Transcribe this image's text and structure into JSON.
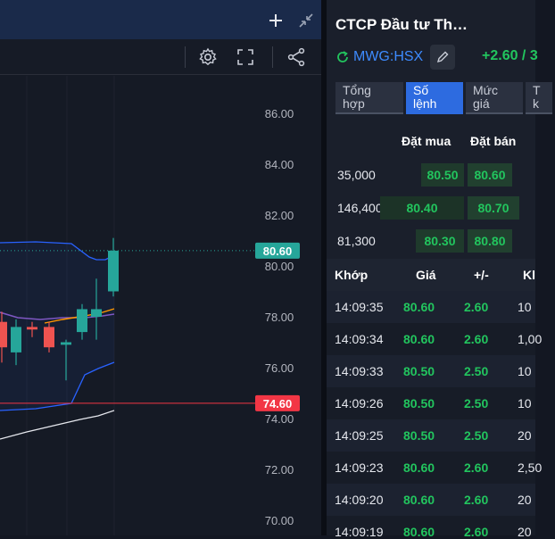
{
  "chart": {
    "y_ticks": [
      "86.00",
      "84.00",
      "82.00",
      "80.00",
      "78.00",
      "76.00",
      "74.00",
      "72.00",
      "70.00"
    ],
    "last_price_label": "80.60",
    "reference_label": "74.60",
    "colors": {
      "up": "#26a69a",
      "down": "#ef5350",
      "band": "#2962ff",
      "last": "#26a69a",
      "ref": "#f23645"
    }
  },
  "chart_data": {
    "type": "candlestick",
    "ylim": [
      69.5,
      87.2
    ],
    "y_ticks": [
      86,
      84,
      82,
      80,
      78,
      76,
      74,
      72,
      70
    ],
    "last_price": 80.6,
    "reference_price": 74.6,
    "candles": [
      {
        "open": 77.8,
        "close": 76.8,
        "high": 78.2,
        "low": 76.2
      },
      {
        "open": 76.6,
        "close": 77.6,
        "high": 77.9,
        "low": 76.1
      },
      {
        "open": 77.6,
        "close": 77.5,
        "high": 77.8,
        "low": 77.2
      },
      {
        "open": 77.6,
        "close": 76.8,
        "high": 77.8,
        "low": 76.6
      },
      {
        "open": 76.9,
        "close": 77.0,
        "high": 77.1,
        "low": 75.5
      },
      {
        "open": 77.4,
        "close": 78.3,
        "high": 78.5,
        "low": 77.1
      },
      {
        "open": 78.0,
        "close": 78.3,
        "high": 79.5,
        "low": 77.1
      },
      {
        "open": 79.0,
        "close": 80.6,
        "high": 81.1,
        "low": 78.8
      }
    ]
  },
  "info": {
    "company": "CTCP Đầu tư Th…",
    "ticker": "MWG:HSX",
    "change": "+2.60 / 3"
  },
  "tabs": [
    {
      "l1": "Tổng",
      "l2": "hợp"
    },
    {
      "l1": "Số",
      "l2": "lệnh"
    },
    {
      "l1": "Mức",
      "l2": "giá"
    },
    {
      "l1": "T",
      "l2": "k"
    }
  ],
  "orderbook": {
    "buy_header": "Đặt mua",
    "sell_header": "Đặt bán",
    "rows": [
      {
        "vol": "35,000",
        "buy": "80.50",
        "sell": "80.60"
      },
      {
        "vol": "146,400",
        "buy": "80.40",
        "sell": "80.70"
      },
      {
        "vol": "81,300",
        "buy": "80.30",
        "sell": "80.80"
      }
    ]
  },
  "matches": {
    "headers": {
      "time": "Khớp",
      "price": "Giá",
      "change": "+/-",
      "vol": "Kl"
    },
    "rows": [
      {
        "time": "14:09:35",
        "price": "80.60",
        "change": "2.60",
        "vol": "10"
      },
      {
        "time": "14:09:34",
        "price": "80.60",
        "change": "2.60",
        "vol": "1,00"
      },
      {
        "time": "14:09:33",
        "price": "80.50",
        "change": "2.50",
        "vol": "10"
      },
      {
        "time": "14:09:26",
        "price": "80.50",
        "change": "2.50",
        "vol": "10"
      },
      {
        "time": "14:09:25",
        "price": "80.50",
        "change": "2.50",
        "vol": "20"
      },
      {
        "time": "14:09:23",
        "price": "80.60",
        "change": "2.60",
        "vol": "2,50"
      },
      {
        "time": "14:09:20",
        "price": "80.60",
        "change": "2.60",
        "vol": "20"
      },
      {
        "time": "14:09:19",
        "price": "80.60",
        "change": "2.60",
        "vol": "20"
      }
    ]
  }
}
